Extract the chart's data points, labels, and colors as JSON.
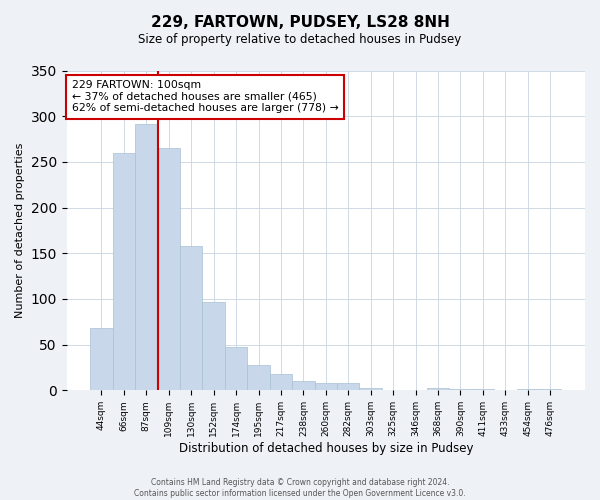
{
  "title": "229, FARTOWN, PUDSEY, LS28 8NH",
  "subtitle": "Size of property relative to detached houses in Pudsey",
  "xlabel": "Distribution of detached houses by size in Pudsey",
  "ylabel": "Number of detached properties",
  "bar_labels": [
    "44sqm",
    "66sqm",
    "87sqm",
    "109sqm",
    "130sqm",
    "152sqm",
    "174sqm",
    "195sqm",
    "217sqm",
    "238sqm",
    "260sqm",
    "282sqm",
    "303sqm",
    "325sqm",
    "346sqm",
    "368sqm",
    "390sqm",
    "411sqm",
    "433sqm",
    "454sqm",
    "476sqm"
  ],
  "bar_values": [
    68,
    260,
    292,
    265,
    158,
    97,
    47,
    28,
    18,
    10,
    8,
    8,
    3,
    0,
    0,
    3,
    1,
    2,
    0,
    1,
    2
  ],
  "bar_color": "#c8d8ea",
  "bar_edge_color": "#a8c0d4",
  "ylim": [
    0,
    350
  ],
  "yticks": [
    0,
    50,
    100,
    150,
    200,
    250,
    300,
    350
  ],
  "vline_color": "#cc0000",
  "annotation_text": "229 FARTOWN: 100sqm\n← 37% of detached houses are smaller (465)\n62% of semi-detached houses are larger (778) →",
  "annotation_box_color": "#ffffff",
  "annotation_box_edge": "#cc0000",
  "footer_line1": "Contains HM Land Registry data © Crown copyright and database right 2024.",
  "footer_line2": "Contains public sector information licensed under the Open Government Licence v3.0.",
  "background_color": "#eef2f7",
  "plot_background_color": "#ffffff",
  "grid_color": "#d0dae6"
}
